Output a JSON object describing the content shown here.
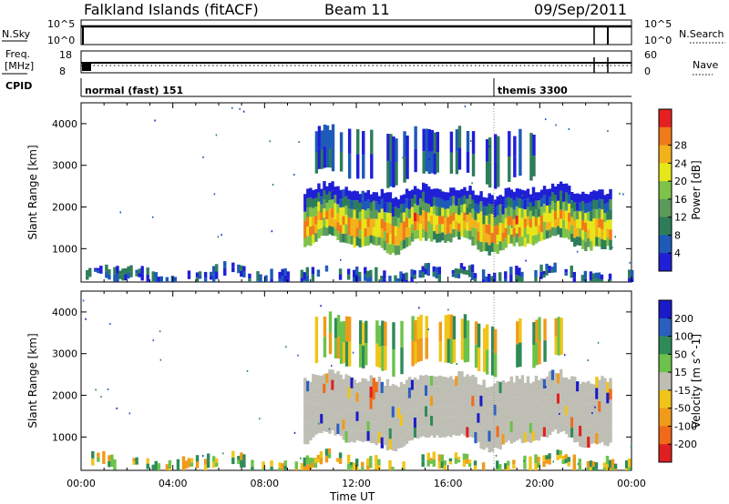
{
  "header": {
    "station": "Falkland Islands (fitACF)",
    "beam": "Beam 11",
    "date": "09/Sep/2011"
  },
  "panels": {
    "nsky_label": "N.Sky",
    "nsky_ticks": [
      "10^5",
      "10^0"
    ],
    "nsearch_label": "N.Search",
    "nsearch_ticks": [
      "10^5",
      "10^0"
    ],
    "freq_label_1": "Freq.",
    "freq_label_2": "[MHz]",
    "freq_ticks": [
      "18",
      "8"
    ],
    "nave_label": "Nave",
    "nave_ticks": [
      "60",
      "0"
    ],
    "cpid_label": "CPID",
    "cpid_modes": [
      {
        "label": "normal (fast) 151",
        "start_hour": 0.0
      },
      {
        "label": "themis 3300",
        "start_hour": 18.0
      }
    ]
  },
  "colors": {
    "power_scale": [
      "#1f1fd6",
      "#1e5ab8",
      "#2e7d5a",
      "#5a9a5a",
      "#7fc24a",
      "#e6e619",
      "#f2b21b",
      "#f07a1a",
      "#e62020"
    ],
    "velocity_scale": [
      "#1a1ac8",
      "#2a5fbf",
      "#2e8b57",
      "#6cc24a",
      "#bebeb4",
      "#f0c419",
      "#f09a1a",
      "#f06a1a",
      "#e02020"
    ],
    "ground_scatter": "#bebeb4"
  },
  "chart_data": [
    {
      "type": "heatmap",
      "title": "Power",
      "xlabel": "Time UT",
      "ylabel": "Slant Range [km]",
      "xlim_hours": [
        0,
        24
      ],
      "ylim": [
        200,
        4500
      ],
      "x_ticks": [
        "00:00",
        "04:00",
        "08:00",
        "12:00",
        "16:00",
        "20:00",
        "00:00"
      ],
      "y_ticks": [
        1000,
        2000,
        3000,
        4000
      ],
      "colorbar_label": "Power [dB]",
      "colorbar_ticks": [
        "4",
        "8",
        "12",
        "16",
        "20",
        "24",
        "28"
      ],
      "regions": [
        {
          "name": "main echo band",
          "t_start": 9.7,
          "t_end": 23.1,
          "range_low": 1100,
          "range_high": 2400,
          "power_db": 20
        },
        {
          "name": "upper echoes",
          "t_start": 10.2,
          "t_end": 20.0,
          "range_low": 2700,
          "range_high": 3800,
          "power_db": 8
        },
        {
          "name": "near-range scatter",
          "t_start": 0.2,
          "t_end": 24.0,
          "range_low": 200,
          "range_high": 500,
          "power_db": 6
        }
      ]
    },
    {
      "type": "heatmap",
      "title": "Velocity",
      "xlabel": "Time UT",
      "ylabel": "Slant Range [km]",
      "xlim_hours": [
        0,
        24
      ],
      "ylim": [
        200,
        4500
      ],
      "x_ticks": [
        "00:00",
        "04:00",
        "08:00",
        "12:00",
        "16:00",
        "20:00",
        "00:00"
      ],
      "y_ticks": [
        1000,
        2000,
        3000,
        4000
      ],
      "colorbar_label": "Velocity [m s^-1]",
      "colorbar_ticks": [
        "200",
        "100",
        "50",
        "15",
        "-15",
        "-50",
        "-100",
        "-200"
      ],
      "regions": [
        {
          "name": "ground scatter band",
          "t_start": 9.7,
          "t_end": 23.1,
          "range_low": 900,
          "range_high": 2400,
          "velocity": 0
        },
        {
          "name": "upper echoes",
          "t_start": 10.2,
          "t_end": 21.0,
          "range_low": 2700,
          "range_high": 3800,
          "velocity": -40
        },
        {
          "name": "near-range scatter",
          "t_start": 0.2,
          "t_end": 24.0,
          "range_low": 200,
          "range_high": 500,
          "velocity": -30
        }
      ]
    }
  ]
}
